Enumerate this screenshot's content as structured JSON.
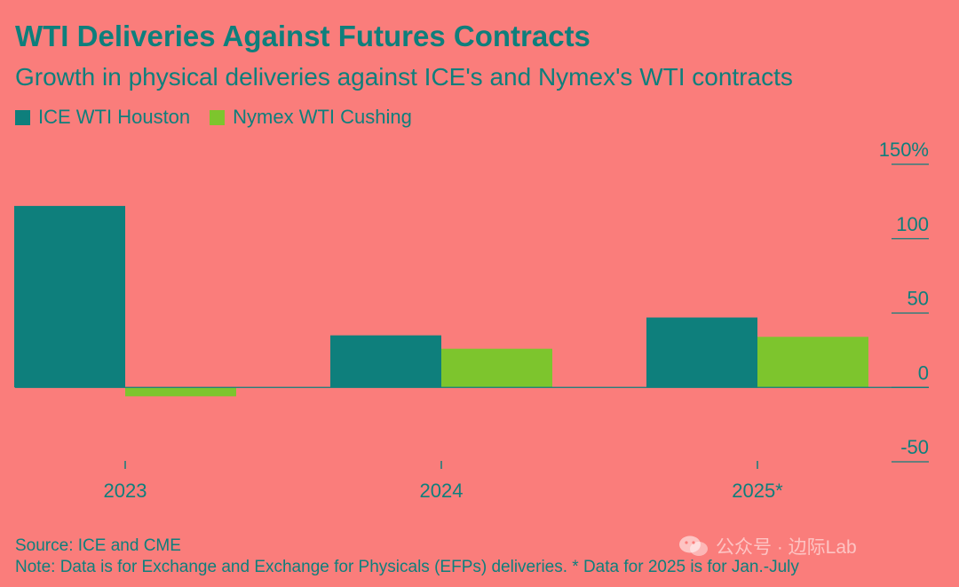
{
  "chart_data": {
    "type": "bar",
    "title": "WTI Deliveries Against Futures Contracts",
    "subtitle": "Growth in physical deliveries against ICE's and Nymex's WTI contracts",
    "categories": [
      "2023",
      "2024",
      "2025*"
    ],
    "series": [
      {
        "name": "ICE WTI Houston",
        "color": "#0e7f7c",
        "values": [
          122,
          35,
          47
        ]
      },
      {
        "name": "Nymex WTI Cushing",
        "color": "#7dc52d",
        "values": [
          -6,
          26,
          34
        ]
      }
    ],
    "ylim": [
      -50,
      150
    ],
    "yticks": [
      -50,
      0,
      50,
      100,
      150
    ],
    "ytick_labels": [
      "-50",
      "0",
      "50",
      "100",
      "150%"
    ],
    "legend_position": "top-left",
    "axis_position": "right",
    "grid": false
  },
  "footer": {
    "source": "Source: ICE and CME",
    "note": "Note: Data is for Exchange and Exchange for Physicals (EFPs) deliveries. * Data for 2025 is for Jan.-July"
  },
  "watermark": {
    "text": "公众号 · 边际Lab",
    "icon": "wechat-icon"
  }
}
